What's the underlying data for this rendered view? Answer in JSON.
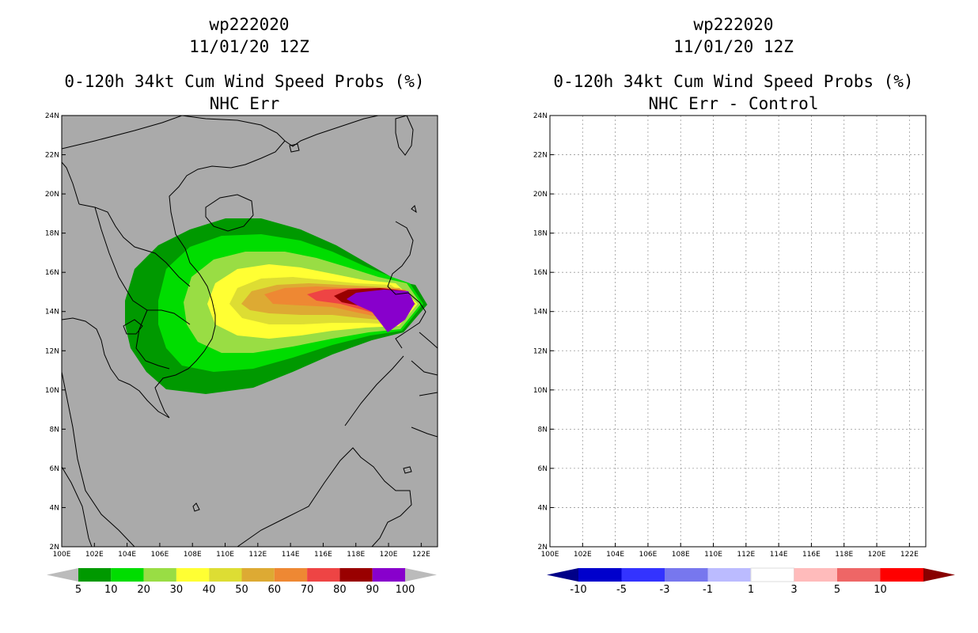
{
  "left_panel": {
    "title_line1": "wp222020",
    "title_line2": "11/01/20 12Z",
    "title_line3": "0-120h 34kt Cum Wind Speed Probs (%)",
    "title_line4": "NHC Err",
    "background_color": "#aaaaaa",
    "colorbar": {
      "colors": [
        "#009900",
        "#00dd00",
        "#99dd44",
        "#ffff33",
        "#dddd33",
        "#ddaa33",
        "#ee8833",
        "#ee4444",
        "#990000",
        "#8800cc"
      ],
      "labels": [
        "5",
        "10",
        "20",
        "30",
        "40",
        "50",
        "60",
        "70",
        "80",
        "90",
        "100"
      ],
      "under_color": "#bbbbbb",
      "over_color": "#bbbbbb"
    },
    "probability_contours": [
      {
        "level": 5,
        "color": "#009900"
      },
      {
        "level": 10,
        "color": "#00dd00"
      },
      {
        "level": 20,
        "color": "#99dd44"
      },
      {
        "level": 30,
        "color": "#ffff33"
      },
      {
        "level": 40,
        "color": "#dddd33"
      },
      {
        "level": 50,
        "color": "#ddaa33"
      },
      {
        "level": 60,
        "color": "#ee8833"
      },
      {
        "level": 70,
        "color": "#ee4444"
      },
      {
        "level": 80,
        "color": "#990000"
      },
      {
        "level": 90,
        "color": "#8800cc"
      }
    ]
  },
  "right_panel": {
    "title_line1": "wp222020",
    "title_line2": "11/01/20 12Z",
    "title_line3": "0-120h 34kt Cum Wind Speed Probs (%)",
    "title_line4": "NHC Err - Control",
    "background_color": "#ffffff",
    "colorbar": {
      "colors": [
        "#0000cc",
        "#3333ff",
        "#7777ee",
        "#bbbbff",
        "#ffffff",
        "#ffbbbb",
        "#ee6666",
        "#ff0000"
      ],
      "labels": [
        "-10",
        "-5",
        "-3",
        "-1",
        "1",
        "3",
        "5",
        "10"
      ],
      "under_color": "#000088",
      "over_color": "#880000"
    }
  },
  "axes": {
    "lon_labels": [
      "100E",
      "102E",
      "104E",
      "106E",
      "108E",
      "110E",
      "112E",
      "114E",
      "116E",
      "118E",
      "120E",
      "122E"
    ],
    "lat_labels": [
      "2N",
      "4N",
      "6N",
      "8N",
      "10N",
      "12N",
      "14N",
      "16N",
      "18N",
      "20N",
      "22N",
      "24N"
    ],
    "lon_range": [
      100,
      123
    ],
    "lat_range": [
      2,
      24
    ]
  },
  "coast_color": "#000000"
}
